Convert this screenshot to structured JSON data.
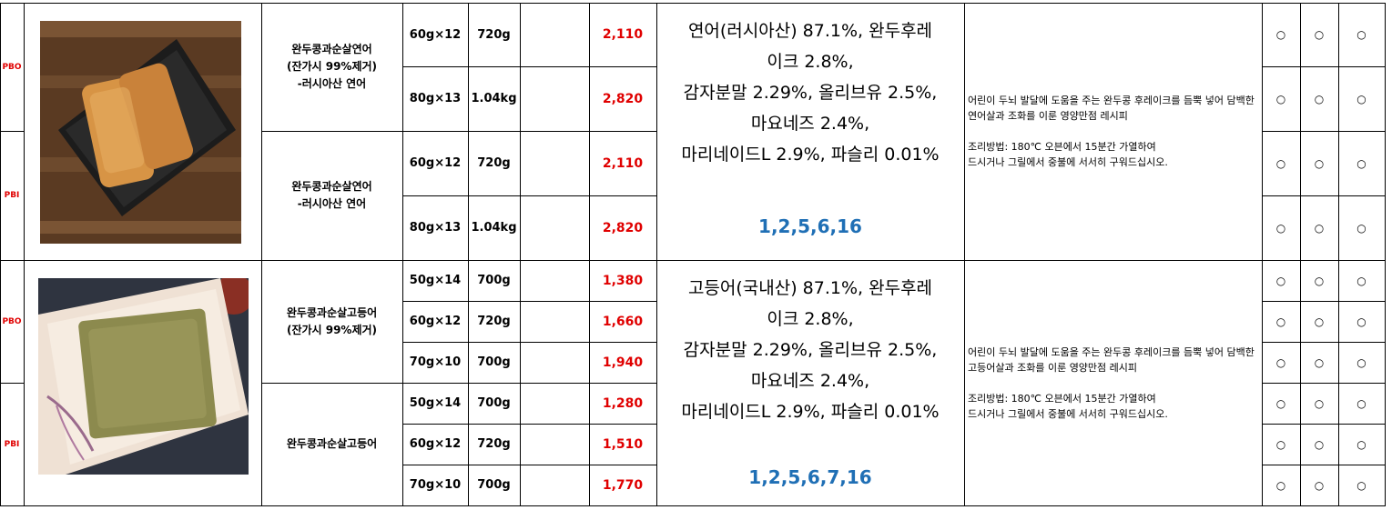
{
  "products": [
    {
      "group": "salmon",
      "ingredients": "연어(러시아산) 87.1%, 완두후레\n이크 2.8%,\n감자분말 2.29%, 올리브유 2.5%,\n마요네즈 2.4%,\n마리네이드L 2.9%, 파슬리 0.01%",
      "allergens": "1,2,5,6,16",
      "description": "어린이 두뇌 발달에 도움을 주는 완두콩 후레이크를 듬뿍 넣어 담백한 연어살과 조화를 이룬 영양만점 레시피\n\n조리방법: 180℃ 오븐에서 15분간 가열하여\n드시거나 그릴에서 중불에 서서히 구워드십시오.",
      "variants": [
        {
          "code": "PBO",
          "name": "완두콩과순살연어\n(잔가시 99%제거)\n-러시아산 연어",
          "rows": [
            {
              "pack": "60g×12",
              "total": "720g",
              "price": "2,110",
              "marks": [
                "○",
                "○",
                "○"
              ]
            },
            {
              "pack": "80g×13",
              "total": "1.04kg",
              "price": "2,820",
              "marks": [
                "○",
                "○",
                "○"
              ]
            }
          ]
        },
        {
          "code": "PBI",
          "name": "완두콩과순살연어\n-러시아산 연어",
          "rows": [
            {
              "pack": "60g×12",
              "total": "720g",
              "price": "2,110",
              "marks": [
                "○",
                "○",
                "○"
              ]
            },
            {
              "pack": "80g×13",
              "total": "1.04kg",
              "price": "2,820",
              "marks": [
                "○",
                "○",
                "○"
              ]
            }
          ]
        }
      ]
    },
    {
      "group": "mackerel",
      "ingredients": "고등어(국내산) 87.1%, 완두후레\n이크 2.8%,\n감자분말 2.29%, 올리브유 2.5%,\n마요네즈 2.4%,\n마리네이드L 2.9%, 파슬리 0.01%",
      "allergens": "1,2,5,6,7,16",
      "description": "어린이 두뇌 발달에 도움을 주는 완두콩 후레이크를 듬뿍 넣어 담백한 고등어살과 조화를 이룬 영양만점 레시피\n\n조리방법: 180℃ 오븐에서 15분간 가열하여\n드시거나 그릴에서 중불에 서서히 구워드십시오.",
      "variants": [
        {
          "code": "PBO",
          "name": "완두콩과순살고등어\n(잔가시 99%제거)",
          "rows": [
            {
              "pack": "50g×14",
              "total": "700g",
              "price": "1,380",
              "marks": [
                "○",
                "○",
                "○"
              ]
            },
            {
              "pack": "60g×12",
              "total": "720g",
              "price": "1,660",
              "marks": [
                "○",
                "○",
                "○"
              ]
            },
            {
              "pack": "70g×10",
              "total": "700g",
              "price": "1,940",
              "marks": [
                "○",
                "○",
                "○"
              ]
            }
          ]
        },
        {
          "code": "PBI",
          "name": "완두콩과순살고등어",
          "rows": [
            {
              "pack": "50g×14",
              "total": "700g",
              "price": "1,280",
              "marks": [
                "○",
                "○",
                "○"
              ]
            },
            {
              "pack": "60g×12",
              "total": "720g",
              "price": "1,510",
              "marks": [
                "○",
                "○",
                "○"
              ]
            },
            {
              "pack": "70g×10",
              "total": "700g",
              "price": "1,770",
              "marks": [
                "○",
                "○",
                "○"
              ]
            }
          ]
        }
      ]
    }
  ],
  "colors": {
    "price": "#e00000",
    "allergen": "#1f6fb5",
    "code": "#e00000"
  },
  "images": [
    "salmon-cutlet-photo",
    "mackerel-cutlet-photo"
  ]
}
